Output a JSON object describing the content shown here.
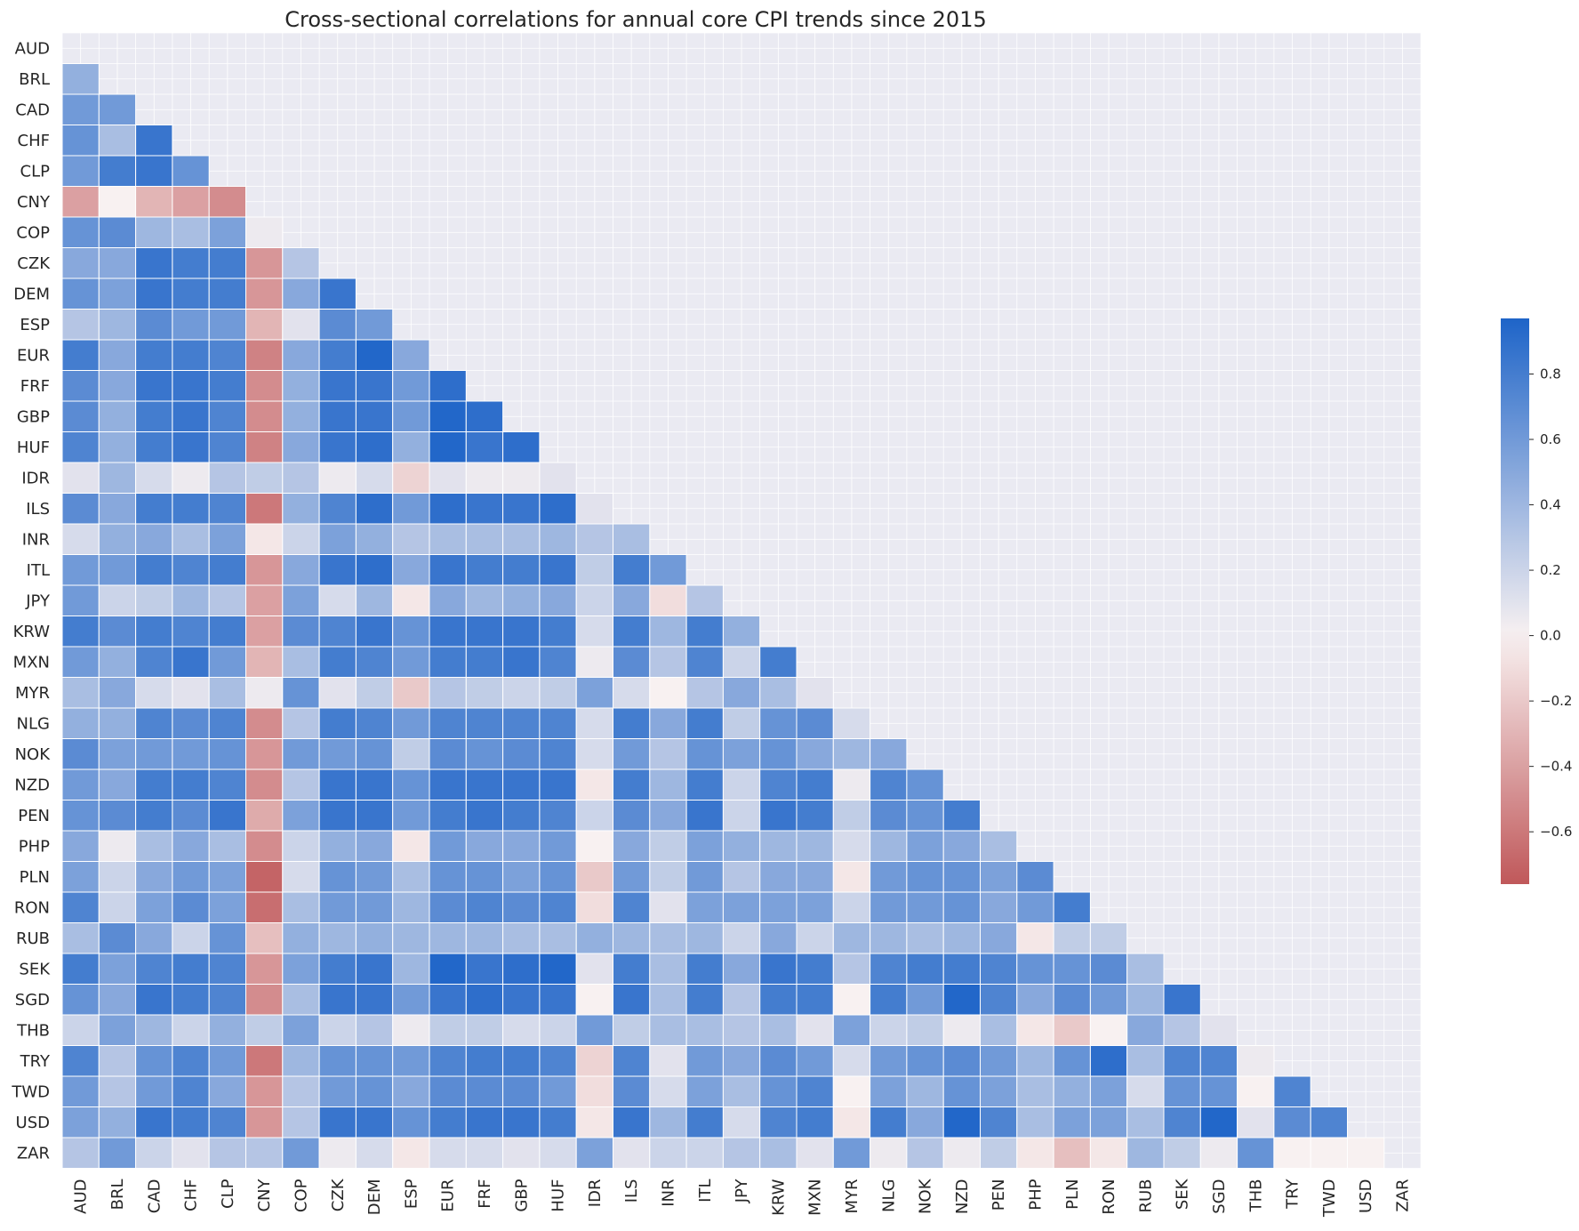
{
  "chart_data": {
    "type": "heatmap",
    "title": "Cross-sectional correlations for annual core CPI trends since 2015",
    "mask": "upper-triangle-and-diagonal",
    "labels": [
      "AUD",
      "BRL",
      "CAD",
      "CHF",
      "CLP",
      "CNY",
      "COP",
      "CZK",
      "DEM",
      "ESP",
      "EUR",
      "FRF",
      "GBP",
      "HUF",
      "IDR",
      "ILS",
      "INR",
      "ITL",
      "JPY",
      "KRW",
      "MXN",
      "MYR",
      "NLG",
      "NOK",
      "NZD",
      "PEN",
      "PHP",
      "PLN",
      "RON",
      "RUB",
      "SEK",
      "SGD",
      "THB",
      "TRY",
      "TWD",
      "USD",
      "ZAR"
    ],
    "lower_triangle_values": [
      [],
      [
        0.45
      ],
      [
        0.6,
        0.6
      ],
      [
        0.65,
        0.35,
        0.85
      ],
      [
        0.6,
        0.8,
        0.85,
        0.65
      ],
      [
        -0.4,
        0.0,
        -0.3,
        -0.4,
        -0.5
      ],
      [
        0.65,
        0.7,
        0.4,
        0.35,
        0.55,
        0.05
      ],
      [
        0.5,
        0.5,
        0.85,
        0.8,
        0.8,
        -0.45,
        0.3
      ],
      [
        0.65,
        0.55,
        0.85,
        0.8,
        0.8,
        -0.45,
        0.5,
        0.85
      ],
      [
        0.3,
        0.4,
        0.7,
        0.6,
        0.6,
        -0.3,
        0.1,
        0.7,
        0.6
      ],
      [
        0.8,
        0.5,
        0.8,
        0.8,
        0.75,
        -0.55,
        0.5,
        0.8,
        0.95,
        0.5
      ],
      [
        0.7,
        0.5,
        0.85,
        0.85,
        0.8,
        -0.5,
        0.45,
        0.85,
        0.85,
        0.6,
        0.9
      ],
      [
        0.7,
        0.45,
        0.8,
        0.85,
        0.75,
        -0.5,
        0.45,
        0.85,
        0.85,
        0.6,
        0.95,
        0.9
      ],
      [
        0.75,
        0.45,
        0.8,
        0.85,
        0.75,
        -0.55,
        0.5,
        0.85,
        0.9,
        0.45,
        0.95,
        0.85,
        0.9
      ],
      [
        0.1,
        0.4,
        0.15,
        0.05,
        0.3,
        0.25,
        0.3,
        0.05,
        0.15,
        -0.15,
        0.1,
        0.05,
        0.05,
        0.1
      ],
      [
        0.7,
        0.5,
        0.8,
        0.8,
        0.75,
        -0.6,
        0.45,
        0.75,
        0.9,
        0.6,
        0.9,
        0.85,
        0.85,
        0.9,
        0.1
      ],
      [
        0.15,
        0.45,
        0.5,
        0.35,
        0.55,
        -0.05,
        0.2,
        0.55,
        0.45,
        0.3,
        0.35,
        0.35,
        0.35,
        0.4,
        0.3,
        0.35
      ],
      [
        0.6,
        0.6,
        0.8,
        0.75,
        0.8,
        -0.45,
        0.5,
        0.85,
        0.9,
        0.5,
        0.85,
        0.8,
        0.8,
        0.85,
        0.25,
        0.8,
        0.6
      ],
      [
        0.6,
        0.2,
        0.25,
        0.4,
        0.3,
        -0.4,
        0.55,
        0.15,
        0.4,
        -0.05,
        0.5,
        0.4,
        0.45,
        0.5,
        0.2,
        0.5,
        -0.1,
        0.3
      ],
      [
        0.8,
        0.7,
        0.8,
        0.75,
        0.8,
        -0.4,
        0.7,
        0.75,
        0.85,
        0.65,
        0.85,
        0.85,
        0.85,
        0.8,
        0.15,
        0.8,
        0.4,
        0.8,
        0.45
      ],
      [
        0.6,
        0.45,
        0.75,
        0.85,
        0.6,
        -0.3,
        0.35,
        0.8,
        0.75,
        0.6,
        0.8,
        0.8,
        0.85,
        0.75,
        0.05,
        0.7,
        0.3,
        0.75,
        0.2,
        0.8
      ],
      [
        0.35,
        0.5,
        0.15,
        0.1,
        0.35,
        0.05,
        0.65,
        0.1,
        0.25,
        -0.2,
        0.3,
        0.25,
        0.2,
        0.25,
        0.55,
        0.15,
        0.0,
        0.3,
        0.5,
        0.35,
        0.1
      ],
      [
        0.45,
        0.45,
        0.75,
        0.7,
        0.75,
        -0.5,
        0.3,
        0.8,
        0.75,
        0.6,
        0.75,
        0.75,
        0.75,
        0.75,
        0.15,
        0.8,
        0.5,
        0.8,
        0.25,
        0.65,
        0.7,
        0.15
      ],
      [
        0.7,
        0.55,
        0.6,
        0.6,
        0.65,
        -0.45,
        0.6,
        0.6,
        0.65,
        0.25,
        0.7,
        0.65,
        0.7,
        0.75,
        0.15,
        0.6,
        0.3,
        0.65,
        0.55,
        0.65,
        0.5,
        0.4,
        0.5
      ],
      [
        0.6,
        0.5,
        0.8,
        0.8,
        0.75,
        -0.5,
        0.3,
        0.85,
        0.85,
        0.65,
        0.85,
        0.85,
        0.85,
        0.85,
        -0.05,
        0.8,
        0.4,
        0.8,
        0.2,
        0.75,
        0.8,
        0.05,
        0.75,
        0.65
      ],
      [
        0.65,
        0.7,
        0.8,
        0.7,
        0.85,
        -0.35,
        0.55,
        0.85,
        0.85,
        0.6,
        0.8,
        0.85,
        0.8,
        0.75,
        0.2,
        0.7,
        0.5,
        0.85,
        0.2,
        0.85,
        0.8,
        0.25,
        0.7,
        0.65,
        0.8
      ],
      [
        0.5,
        0.05,
        0.35,
        0.5,
        0.35,
        -0.5,
        0.2,
        0.45,
        0.5,
        -0.05,
        0.6,
        0.5,
        0.5,
        0.6,
        0.0,
        0.5,
        0.25,
        0.55,
        0.45,
        0.4,
        0.4,
        0.15,
        0.4,
        0.55,
        0.5,
        0.35
      ],
      [
        0.55,
        0.2,
        0.5,
        0.6,
        0.55,
        -0.7,
        0.15,
        0.65,
        0.6,
        0.35,
        0.65,
        0.65,
        0.55,
        0.65,
        -0.2,
        0.6,
        0.25,
        0.6,
        0.3,
        0.5,
        0.5,
        -0.05,
        0.6,
        0.65,
        0.65,
        0.55,
        0.7
      ],
      [
        0.75,
        0.2,
        0.55,
        0.7,
        0.55,
        -0.65,
        0.35,
        0.6,
        0.6,
        0.4,
        0.7,
        0.75,
        0.7,
        0.75,
        -0.1,
        0.75,
        0.1,
        0.55,
        0.55,
        0.55,
        0.55,
        0.2,
        0.6,
        0.6,
        0.65,
        0.5,
        0.6,
        0.8
      ],
      [
        0.35,
        0.7,
        0.5,
        0.2,
        0.65,
        -0.25,
        0.45,
        0.4,
        0.45,
        0.4,
        0.4,
        0.4,
        0.35,
        0.35,
        0.45,
        0.4,
        0.35,
        0.4,
        0.2,
        0.5,
        0.2,
        0.4,
        0.4,
        0.35,
        0.4,
        0.5,
        -0.05,
        0.25,
        0.25
      ],
      [
        0.8,
        0.55,
        0.75,
        0.8,
        0.75,
        -0.45,
        0.55,
        0.8,
        0.85,
        0.4,
        0.95,
        0.85,
        0.9,
        0.95,
        0.1,
        0.8,
        0.35,
        0.8,
        0.5,
        0.85,
        0.8,
        0.3,
        0.75,
        0.8,
        0.8,
        0.75,
        0.65,
        0.65,
        0.7,
        0.35
      ],
      [
        0.65,
        0.5,
        0.85,
        0.8,
        0.75,
        -0.5,
        0.35,
        0.85,
        0.85,
        0.6,
        0.85,
        0.9,
        0.85,
        0.85,
        0.0,
        0.85,
        0.35,
        0.8,
        0.3,
        0.8,
        0.8,
        0.0,
        0.8,
        0.6,
        0.95,
        0.75,
        0.5,
        0.7,
        0.6,
        0.4,
        0.85
      ],
      [
        0.2,
        0.55,
        0.4,
        0.2,
        0.45,
        0.25,
        0.55,
        0.2,
        0.3,
        0.05,
        0.25,
        0.25,
        0.15,
        0.2,
        0.6,
        0.25,
        0.35,
        0.35,
        0.3,
        0.35,
        0.1,
        0.55,
        0.2,
        0.25,
        0.05,
        0.35,
        -0.05,
        -0.2,
        0.0,
        0.5,
        0.3,
        0.1
      ],
      [
        0.75,
        0.3,
        0.65,
        0.75,
        0.6,
        -0.6,
        0.4,
        0.65,
        0.65,
        0.6,
        0.75,
        0.8,
        0.8,
        0.75,
        -0.15,
        0.75,
        0.1,
        0.6,
        0.5,
        0.7,
        0.6,
        0.15,
        0.6,
        0.65,
        0.7,
        0.6,
        0.4,
        0.65,
        0.9,
        0.35,
        0.75,
        0.75,
        0.05
      ],
      [
        0.6,
        0.3,
        0.6,
        0.75,
        0.5,
        -0.45,
        0.3,
        0.6,
        0.65,
        0.5,
        0.7,
        0.7,
        0.7,
        0.6,
        -0.1,
        0.7,
        0.15,
        0.55,
        0.35,
        0.65,
        0.75,
        0.0,
        0.55,
        0.4,
        0.65,
        0.55,
        0.35,
        0.45,
        0.55,
        0.15,
        0.65,
        0.65,
        0.0,
        0.75
      ],
      [
        0.55,
        0.45,
        0.85,
        0.8,
        0.75,
        -0.45,
        0.3,
        0.85,
        0.85,
        0.65,
        0.8,
        0.85,
        0.85,
        0.8,
        -0.05,
        0.85,
        0.4,
        0.8,
        0.15,
        0.75,
        0.8,
        -0.05,
        0.8,
        0.5,
        0.95,
        0.75,
        0.35,
        0.55,
        0.55,
        0.35,
        0.75,
        0.95,
        0.1,
        0.7,
        0.75
      ],
      [
        0.3,
        0.6,
        0.2,
        0.1,
        0.3,
        0.3,
        0.6,
        0.05,
        0.15,
        -0.05,
        0.15,
        0.15,
        0.1,
        0.15,
        0.55,
        0.1,
        0.2,
        0.2,
        0.3,
        0.35,
        0.1,
        0.6,
        0.05,
        0.3,
        0.05,
        0.25,
        -0.05,
        -0.25,
        -0.05,
        0.4,
        0.25,
        0.05,
        0.65,
        0.0,
        0.0,
        0.0
      ]
    ],
    "colorbar": {
      "ticks": [
        0.8,
        0.6,
        0.4,
        0.2,
        0.0,
        -0.2,
        -0.4,
        -0.6
      ],
      "tick_labels": [
        "0.8",
        "0.6",
        "0.4",
        "0.2",
        "0.0",
        "−0.2",
        "−0.4",
        "−0.6"
      ],
      "range": [
        -0.76,
        0.97
      ],
      "colors": {
        "negative": "#c0585a",
        "zero": "#f8f1f1",
        "positive": "#1e64c8"
      }
    },
    "mask_color": "#eaeaf2",
    "grid_color": "#ffffff"
  }
}
